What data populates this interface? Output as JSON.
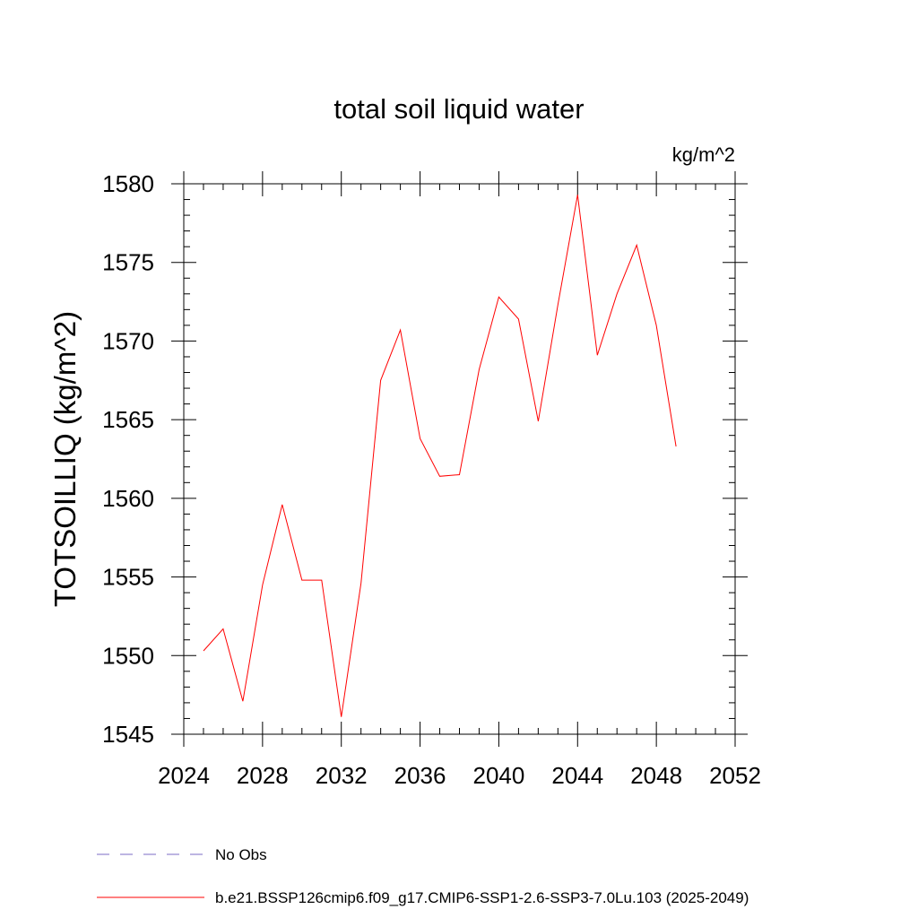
{
  "chart_data": {
    "type": "line",
    "title": "total soil liquid water",
    "units_label": "kg/m^2",
    "xlabel": "",
    "ylabel": "TOTSOILLIQ  (kg/m^2)",
    "xlim": [
      2024,
      2052
    ],
    "ylim": [
      1545,
      1580
    ],
    "xticks": [
      2024,
      2028,
      2032,
      2036,
      2040,
      2044,
      2048,
      2052
    ],
    "yticks": [
      1545,
      1550,
      1555,
      1560,
      1565,
      1570,
      1575,
      1580
    ],
    "x_minor_step": 1,
    "y_minor_step": 1,
    "grid": false,
    "legend_placement": "bottom-left",
    "series": [
      {
        "name": "b.e21.BSSP126cmip6.f09_g17.CMIP6-SSP1-2.6-SSP3-7.0Lu.103 (2025-2049)",
        "color": "#ff0000",
        "dash": "solid",
        "x": [
          2025,
          2026,
          2027,
          2028,
          2029,
          2030,
          2031,
          2032,
          2033,
          2034,
          2035,
          2036,
          2037,
          2038,
          2039,
          2040,
          2041,
          2042,
          2043,
          2044,
          2045,
          2046,
          2047,
          2048,
          2049
        ],
        "y": [
          1550.3,
          1551.7,
          1547.1,
          1554.5,
          1559.6,
          1554.8,
          1554.8,
          1546.1,
          1554.6,
          1567.5,
          1570.7,
          1563.8,
          1561.4,
          1561.5,
          1568.2,
          1572.8,
          1571.4,
          1564.9,
          1572.3,
          1579.3,
          1569.1,
          1573.0,
          1576.1,
          1571.0,
          1563.3
        ]
      }
    ],
    "legend": [
      {
        "label": "No Obs",
        "color": "#7b6bc4",
        "dash": "dashed"
      },
      {
        "label": "b.e21.BSSP126cmip6.f09_g17.CMIP6-SSP1-2.6-SSP3-7.0Lu.103 (2025-2049)",
        "color": "#ff0000",
        "dash": "solid"
      }
    ]
  }
}
